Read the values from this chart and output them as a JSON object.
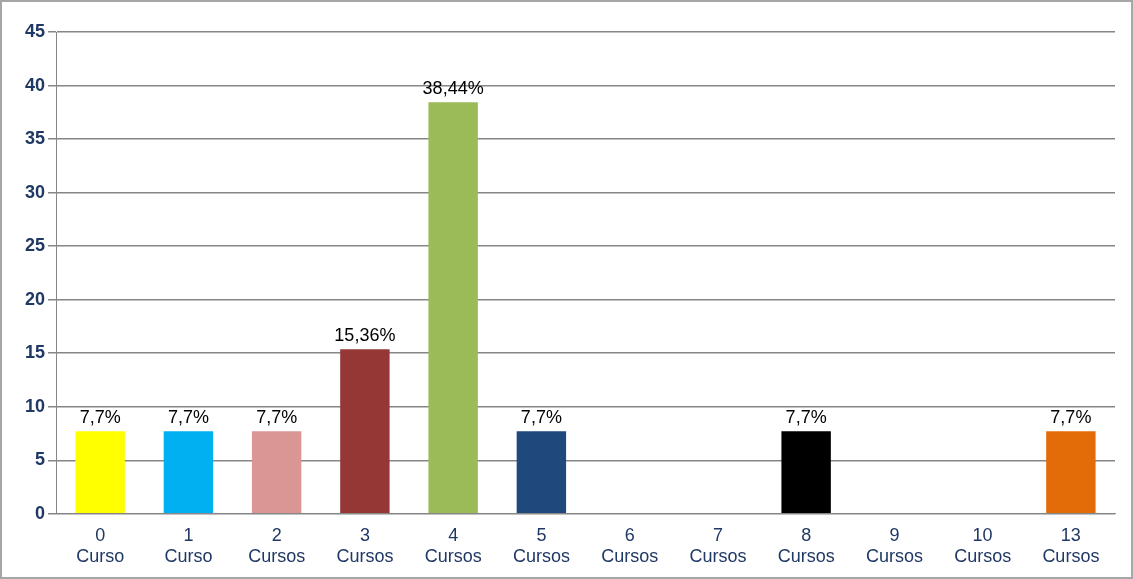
{
  "chart_data": {
    "type": "bar",
    "categories": [
      "0 Curso",
      "1 Curso",
      "2 Cursos",
      "3 Cursos",
      "4 Cursos",
      "5 Cursos",
      "6 Cursos",
      "7 Cursos",
      "8 Cursos",
      "9 Cursos",
      "10 Cursos",
      "13 Cursos"
    ],
    "values": [
      7.7,
      7.7,
      7.7,
      15.36,
      38.44,
      7.7,
      0,
      0,
      7.7,
      0,
      0,
      7.7
    ],
    "value_labels": [
      "7,7%",
      "7,7%",
      "7,7%",
      "15,36%",
      "38,44%",
      "7,7%",
      null,
      null,
      "7,7%",
      null,
      null,
      "7,7%"
    ],
    "colors": [
      "#ffff00",
      "#00b0f0",
      "#d99694",
      "#953735",
      "#9bbb59",
      "#1f497d",
      "#000000",
      "#000000",
      "#000000",
      "#000000",
      "#000000",
      "#e36c09"
    ],
    "ylim": [
      0,
      45
    ],
    "yticks": [
      0,
      5,
      10,
      15,
      20,
      25,
      30,
      35,
      40,
      45
    ],
    "grid": "y",
    "legend": false
  }
}
